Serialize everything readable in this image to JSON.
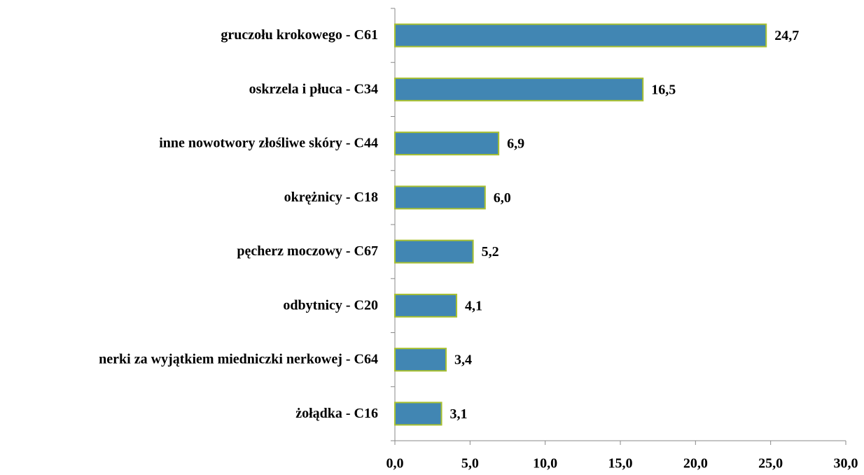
{
  "chart_data": {
    "type": "bar",
    "orientation": "horizontal",
    "categories": [
      "gruczołu krokowego - C61",
      "oskrzela i płuca - C34",
      "inne nowotwory złośliwe skóry - C44",
      "okrężnicy - C18",
      "pęcherz moczowy - C67",
      "odbytnicy - C20",
      "nerki za wyjątkiem miedniczki nerkowej - C64",
      "żołądka - C16"
    ],
    "values": [
      24.7,
      16.5,
      6.9,
      6.0,
      5.2,
      4.1,
      3.4,
      3.1
    ],
    "value_labels": [
      "24,7",
      "16,5",
      "6,9",
      "6,0",
      "5,2",
      "4,1",
      "3,4",
      "3,1"
    ],
    "color": "#4186b3",
    "edge_color": "#a8c030",
    "xlim": [
      0,
      30
    ],
    "xticks": [
      {
        "value": 0,
        "label": "0,0"
      },
      {
        "value": 5,
        "label": "5,0"
      },
      {
        "value": 10,
        "label": "10,0"
      },
      {
        "value": 15,
        "label": "15,0"
      },
      {
        "value": 20,
        "label": "20,0"
      },
      {
        "value": 25,
        "label": "25,0"
      },
      {
        "value": 30,
        "label": "30,0"
      }
    ],
    "grid": false
  }
}
